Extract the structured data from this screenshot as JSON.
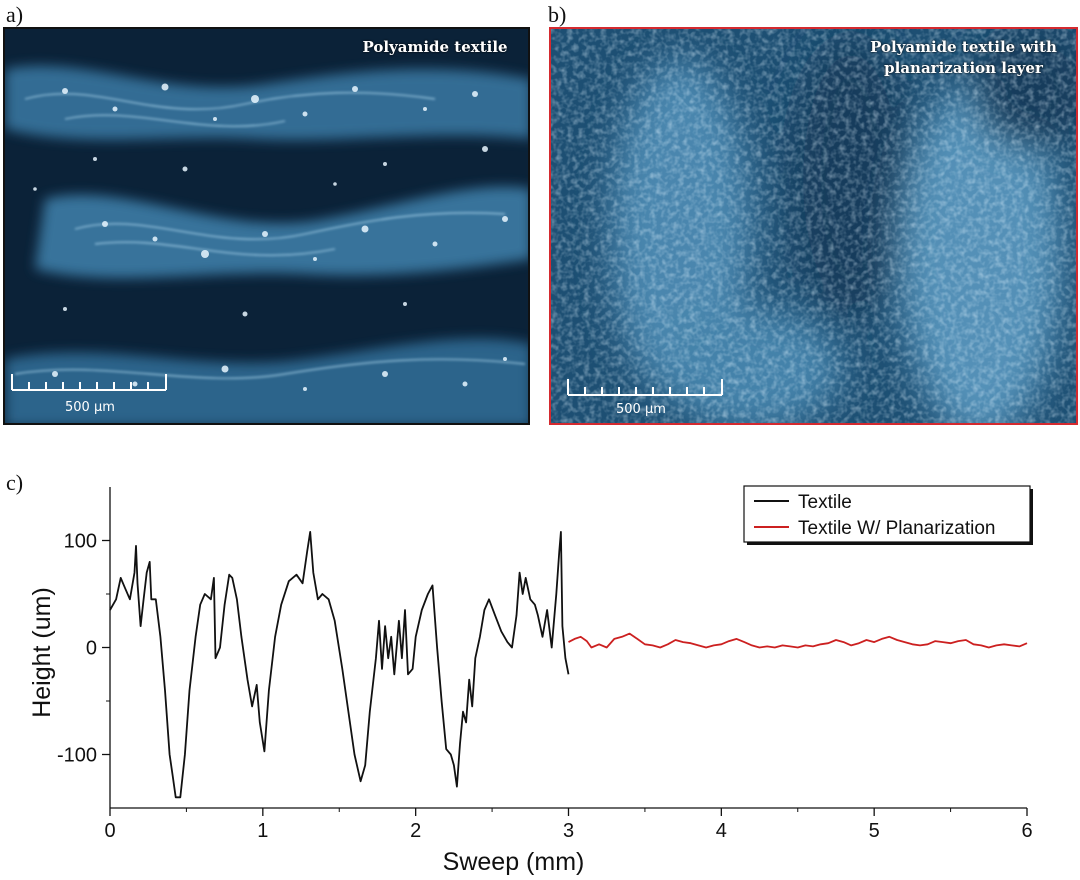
{
  "panels": {
    "a": {
      "letter": "a)",
      "title": "Polyamide textile",
      "scale_label": "500 µm",
      "border_color": "#111111"
    },
    "b": {
      "letter": "b)",
      "title_line1": "Polyamide textile with",
      "title_line2": "planarization layer",
      "scale_label": "500 µm",
      "border_color": "#d42a2f"
    },
    "c": {
      "letter": "c)"
    }
  },
  "chart_data": {
    "type": "line",
    "title": "",
    "xlabel": "Sweep (mm)",
    "ylabel": "Height (um)",
    "xlim": [
      0,
      6
    ],
    "ylim": [
      -150,
      150
    ],
    "xticks": [
      0,
      1,
      2,
      3,
      4,
      5,
      6
    ],
    "yticks": [
      -100,
      0,
      100
    ],
    "legend_position": "top-right",
    "series": [
      {
        "name": "Textile",
        "color": "#111111",
        "points": [
          [
            0.0,
            35
          ],
          [
            0.04,
            45
          ],
          [
            0.07,
            65
          ],
          [
            0.1,
            55
          ],
          [
            0.13,
            45
          ],
          [
            0.16,
            70
          ],
          [
            0.17,
            95
          ],
          [
            0.18,
            60
          ],
          [
            0.2,
            20
          ],
          [
            0.22,
            45
          ],
          [
            0.24,
            70
          ],
          [
            0.26,
            80
          ],
          [
            0.27,
            45
          ],
          [
            0.3,
            45
          ],
          [
            0.33,
            10
          ],
          [
            0.36,
            -40
          ],
          [
            0.39,
            -100
          ],
          [
            0.41,
            -120
          ],
          [
            0.43,
            -140
          ],
          [
            0.46,
            -140
          ],
          [
            0.49,
            -100
          ],
          [
            0.52,
            -40
          ],
          [
            0.56,
            10
          ],
          [
            0.59,
            40
          ],
          [
            0.62,
            50
          ],
          [
            0.66,
            45
          ],
          [
            0.68,
            65
          ],
          [
            0.69,
            -10
          ],
          [
            0.72,
            0
          ],
          [
            0.75,
            40
          ],
          [
            0.78,
            68
          ],
          [
            0.8,
            65
          ],
          [
            0.83,
            45
          ],
          [
            0.86,
            10
          ],
          [
            0.9,
            -30
          ],
          [
            0.93,
            -55
          ],
          [
            0.96,
            -35
          ],
          [
            0.98,
            -70
          ],
          [
            1.01,
            -97
          ],
          [
            1.04,
            -40
          ],
          [
            1.08,
            10
          ],
          [
            1.12,
            40
          ],
          [
            1.17,
            62
          ],
          [
            1.22,
            68
          ],
          [
            1.26,
            60
          ],
          [
            1.29,
            90
          ],
          [
            1.31,
            108
          ],
          [
            1.33,
            70
          ],
          [
            1.36,
            45
          ],
          [
            1.39,
            50
          ],
          [
            1.43,
            45
          ],
          [
            1.47,
            25
          ],
          [
            1.52,
            -20
          ],
          [
            1.56,
            -60
          ],
          [
            1.6,
            -100
          ],
          [
            1.64,
            -125
          ],
          [
            1.67,
            -110
          ],
          [
            1.7,
            -60
          ],
          [
            1.74,
            -10
          ],
          [
            1.76,
            25
          ],
          [
            1.78,
            -20
          ],
          [
            1.8,
            20
          ],
          [
            1.82,
            -10
          ],
          [
            1.84,
            10
          ],
          [
            1.86,
            -25
          ],
          [
            1.89,
            25
          ],
          [
            1.91,
            -10
          ],
          [
            1.93,
            35
          ],
          [
            1.95,
            -25
          ],
          [
            1.98,
            -20
          ],
          [
            2.0,
            10
          ],
          [
            2.04,
            35
          ],
          [
            2.08,
            50
          ],
          [
            2.11,
            58
          ],
          [
            2.14,
            0
          ],
          [
            2.17,
            -50
          ],
          [
            2.2,
            -95
          ],
          [
            2.23,
            -100
          ],
          [
            2.25,
            -110
          ],
          [
            2.27,
            -130
          ],
          [
            2.29,
            -90
          ],
          [
            2.31,
            -60
          ],
          [
            2.33,
            -70
          ],
          [
            2.35,
            -30
          ],
          [
            2.37,
            -55
          ],
          [
            2.39,
            -10
          ],
          [
            2.42,
            10
          ],
          [
            2.45,
            35
          ],
          [
            2.48,
            45
          ],
          [
            2.52,
            30
          ],
          [
            2.56,
            15
          ],
          [
            2.6,
            5
          ],
          [
            2.63,
            0
          ],
          [
            2.66,
            30
          ],
          [
            2.68,
            70
          ],
          [
            2.7,
            50
          ],
          [
            2.72,
            65
          ],
          [
            2.75,
            45
          ],
          [
            2.78,
            40
          ],
          [
            2.8,
            30
          ],
          [
            2.83,
            10
          ],
          [
            2.86,
            35
          ],
          [
            2.89,
            0
          ],
          [
            2.92,
            50
          ],
          [
            2.94,
            90
          ],
          [
            2.95,
            108
          ],
          [
            2.96,
            20
          ],
          [
            2.98,
            -10
          ],
          [
            3.0,
            -25
          ]
        ]
      },
      {
        "name": "Textile W/ Planarization",
        "color": "#cc2020",
        "points": [
          [
            3.0,
            5
          ],
          [
            3.04,
            8
          ],
          [
            3.08,
            10
          ],
          [
            3.12,
            6
          ],
          [
            3.15,
            0
          ],
          [
            3.2,
            3
          ],
          [
            3.25,
            0
          ],
          [
            3.3,
            8
          ],
          [
            3.35,
            10
          ],
          [
            3.4,
            13
          ],
          [
            3.45,
            8
          ],
          [
            3.5,
            3
          ],
          [
            3.55,
            2
          ],
          [
            3.6,
            0
          ],
          [
            3.65,
            3
          ],
          [
            3.7,
            7
          ],
          [
            3.75,
            5
          ],
          [
            3.8,
            4
          ],
          [
            3.85,
            2
          ],
          [
            3.9,
            0
          ],
          [
            3.95,
            2
          ],
          [
            4.0,
            3
          ],
          [
            4.05,
            6
          ],
          [
            4.1,
            8
          ],
          [
            4.15,
            5
          ],
          [
            4.2,
            2
          ],
          [
            4.25,
            0
          ],
          [
            4.3,
            1
          ],
          [
            4.35,
            0
          ],
          [
            4.4,
            2
          ],
          [
            4.45,
            1
          ],
          [
            4.5,
            0
          ],
          [
            4.55,
            2
          ],
          [
            4.6,
            1
          ],
          [
            4.65,
            3
          ],
          [
            4.7,
            4
          ],
          [
            4.75,
            7
          ],
          [
            4.8,
            5
          ],
          [
            4.85,
            2
          ],
          [
            4.9,
            4
          ],
          [
            4.95,
            7
          ],
          [
            5.0,
            5
          ],
          [
            5.05,
            8
          ],
          [
            5.1,
            10
          ],
          [
            5.15,
            7
          ],
          [
            5.2,
            5
          ],
          [
            5.25,
            3
          ],
          [
            5.3,
            2
          ],
          [
            5.35,
            3
          ],
          [
            5.4,
            6
          ],
          [
            5.45,
            5
          ],
          [
            5.5,
            4
          ],
          [
            5.55,
            6
          ],
          [
            5.6,
            7
          ],
          [
            5.65,
            3
          ],
          [
            5.7,
            2
          ],
          [
            5.75,
            0
          ],
          [
            5.8,
            2
          ],
          [
            5.85,
            3
          ],
          [
            5.9,
            2
          ],
          [
            5.95,
            1
          ],
          [
            6.0,
            4
          ]
        ]
      }
    ]
  }
}
